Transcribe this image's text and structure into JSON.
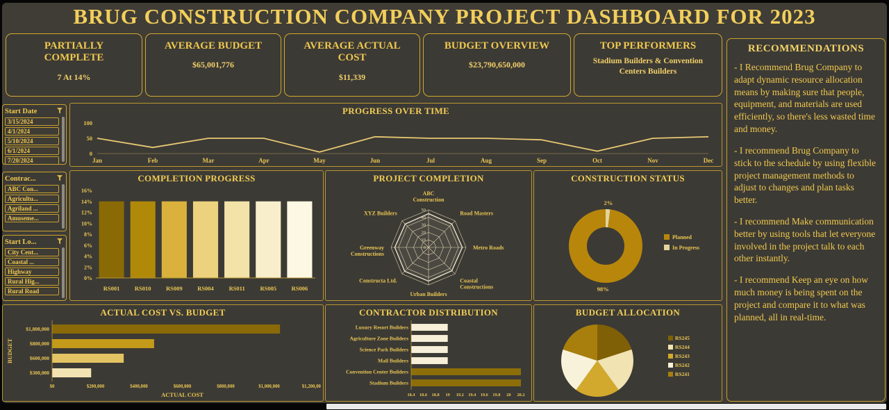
{
  "title": "BRUG CONSTRUCTION COMPANY PROJECT DASHBOARD FOR 2023",
  "colors": {
    "gold_text": "#e9c653",
    "gold_bright": "#f2d06a",
    "border": "#c9a22c",
    "background": "#403d37",
    "panel": "#3c3a35"
  },
  "kpis": [
    {
      "label": "PARTIALLY COMPLETE",
      "value": "7 At 14%"
    },
    {
      "label": "AVERAGE BUDGET",
      "value": "$65,001,776"
    },
    {
      "label": "AVERAGE ACTUAL COST",
      "value": "$11,339"
    },
    {
      "label": "BUDGET OVERVIEW",
      "value": "$23,790,650,000"
    },
    {
      "label": "TOP PERFORMERS",
      "value": "Stadium Builders & Convention Centers Builders"
    }
  ],
  "recommendations": {
    "title": "RECOMMENDATIONS",
    "items": [
      "- I Recommend Brug Company to adapt dynamic resource allocation means by making sure that people, equipment, and materials are used efficiently, so there's less wasted time and money.",
      "- I recommend Brug Company to stick to the schedule by using flexible project management methods to adjust to changes and plan tasks better.",
      "- I recommend Make communication better by using tools that let everyone involved in the project talk to each other instantly.",
      "- I recommend Keep an eye on how much money is being spent on the project and compare it to what was planned, all in real-time."
    ]
  },
  "slicers": [
    {
      "title": "Start Date",
      "items": [
        "3/15/2024",
        "4/1/2024",
        "5/10/2024",
        "6/1/2024",
        "7/20/2024"
      ]
    },
    {
      "title": "Contrac...",
      "items": [
        "ABC Con...",
        "Agricultu...",
        "Agriland ...",
        "Amuseme..."
      ]
    },
    {
      "title": "Start Lo...",
      "items": [
        "City Cent...",
        "Coastal ...",
        "Highway",
        "Rural Hig...",
        "Rural Road"
      ]
    }
  ],
  "chart_data": [
    {
      "type": "line",
      "title": "PROGRESS OVER TIME",
      "x": [
        "Jan",
        "Feb",
        "Mar",
        "Apr",
        "May",
        "Jun",
        "Jul",
        "Aug",
        "Sep",
        "Oct",
        "Nov",
        "Dec"
      ],
      "values": [
        50,
        20,
        50,
        50,
        5,
        55,
        50,
        50,
        45,
        8,
        50,
        55
      ],
      "ylim": [
        0,
        100
      ],
      "yticks": [
        0,
        50,
        100
      ],
      "line_color": "#e8c973",
      "grid": false
    },
    {
      "type": "bar",
      "title": "COMPLETION PROGRESS",
      "categories": [
        "RS001",
        "RS010",
        "RS009",
        "RS004",
        "RS011",
        "RS005",
        "RS006"
      ],
      "values": [
        14,
        14,
        14,
        14,
        14,
        14,
        14
      ],
      "bar_colors": [
        "#8a6a05",
        "#b08908",
        "#d9b13c",
        "#ecd27f",
        "#f3e3a8",
        "#f8eecb",
        "#fdf8e3"
      ],
      "ylim": [
        0,
        16
      ],
      "yticks": [
        "0%",
        "2%",
        "4%",
        "6%",
        "8%",
        "10%",
        "12%",
        "14%",
        "16%"
      ]
    },
    {
      "type": "radar",
      "title": "PROJECT COMPLETION",
      "categories": [
        "ABC Construction",
        "Road Masters",
        "Metro Roads",
        "Coastal Constructions",
        "Urban Builders",
        "Constructa Ltd.",
        "Greenway Constructions",
        "XYZ Builders"
      ],
      "values": [
        45,
        44,
        45,
        44,
        45,
        45,
        45,
        44
      ],
      "max": 50,
      "rings": [
        10,
        20,
        30,
        40,
        50
      ],
      "scale_labels": [
        "0",
        "10",
        "20",
        "30",
        "40",
        "50"
      ]
    },
    {
      "type": "donut",
      "title": "CONSTRUCTION STATUS",
      "slices": [
        {
          "label": "Planned",
          "value": 98,
          "color": "#b8860b"
        },
        {
          "label": "In Progress",
          "value": 2,
          "color": "#e3d49b"
        }
      ],
      "legend_position": "right"
    },
    {
      "type": "hbar",
      "title": "ACTUAL COST VS. BUDGET",
      "categories": [
        "$1,800,000",
        "$800,000",
        "$600,000",
        "$300,000"
      ],
      "values": [
        1050000,
        470000,
        330000,
        180000
      ],
      "bar_colors": [
        "#8a6a08",
        "#c39a1a",
        "#e3c363",
        "#f2e3b3"
      ],
      "xlim": [
        0,
        1200000
      ],
      "xticks": [
        "$0",
        "$200,000",
        "$400,000",
        "$600,000",
        "$800,000",
        "$1,000,000",
        "$1,200,000"
      ],
      "xlabel": "ACTUAL COST",
      "ylabel": "BUDGET"
    },
    {
      "type": "hbar",
      "title": "CONTRACTOR DISTRIBUTION",
      "categories": [
        "Luxury Resort Builders",
        "Agriculture Zone Builders",
        "Science Park Builders",
        "Mall Builders",
        "Convention Center Builders",
        "Stadium Builders"
      ],
      "values": [
        19,
        19,
        19,
        19,
        20.2,
        20.2
      ],
      "bar_colors": [
        "#f7efd7",
        "#f7efd7",
        "#f7efd7",
        "#f7efd7",
        "#8d6e08",
        "#8d6e08"
      ],
      "xlim": [
        18.4,
        20.2
      ],
      "xticks": [
        "18.4",
        "18.6",
        "18.8",
        "19",
        "19.2",
        "19.4",
        "19.6",
        "19.8",
        "20",
        "20.2"
      ]
    },
    {
      "type": "pie",
      "title": "BUDGET ALLOCATION",
      "slices": [
        {
          "label": "RS245",
          "value": 20,
          "color": "#806006"
        },
        {
          "label": "RS244",
          "value": 20,
          "color": "#f1e3b2"
        },
        {
          "label": "RS243",
          "value": 20,
          "color": "#d2a92c"
        },
        {
          "label": "RS242",
          "value": 20,
          "color": "#f9f2da"
        },
        {
          "label": "RS241",
          "value": 20,
          "color": "#a87f0c"
        }
      ],
      "legend_position": "right"
    }
  ]
}
